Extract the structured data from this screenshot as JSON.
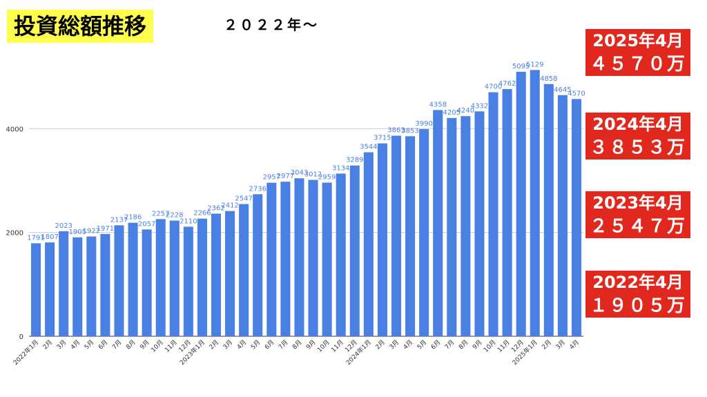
{
  "header": {
    "title": "投資総額推移",
    "subtitle": "２０２２年〜"
  },
  "badges": [
    {
      "date": "2025年4月",
      "value": "４５７０万"
    },
    {
      "date": "2024年4月",
      "value": "３８５３万"
    },
    {
      "date": "2023年4月",
      "value": "２５４７万"
    },
    {
      "date": "2022年4月",
      "value": "１９０５万"
    }
  ],
  "colors": {
    "bar": "#4a7fe3",
    "label": "#4a7fe3",
    "badge": "#e0281e",
    "title_bg": "#ffff4d"
  },
  "chart_data": {
    "type": "bar",
    "categories": [
      "2022年1月",
      "2月",
      "3月",
      "4月",
      "5月",
      "6月",
      "7月",
      "8月",
      "9月",
      "10月",
      "11月",
      "12月",
      "2023年1月",
      "2月",
      "3月",
      "4月",
      "5月",
      "6月",
      "7月",
      "8月",
      "9月",
      "10月",
      "11月",
      "12月",
      "2024年1月",
      "2月",
      "3月",
      "4月",
      "5月",
      "6月",
      "7月",
      "8月",
      "9月",
      "10月",
      "11月",
      "12月",
      "2025年1月",
      "2月",
      "3月",
      "4月"
    ],
    "values": [
      1791,
      1807,
      2023,
      1905,
      1922,
      1971,
      2137,
      2186,
      2057,
      2257,
      2228,
      2110,
      2266,
      2362,
      2412,
      2547,
      2736,
      2957,
      2977,
      3043,
      3012,
      2959,
      3134,
      3289,
      3544,
      3715,
      3863,
      3853,
      3990,
      4358,
      4205,
      4240,
      4332,
      4700,
      4762,
      5095,
      5129,
      4858,
      4645,
      4570
    ],
    "ylim": [
      0,
      5400
    ],
    "yticks": [
      0,
      2000,
      4000
    ],
    "grid": true
  }
}
